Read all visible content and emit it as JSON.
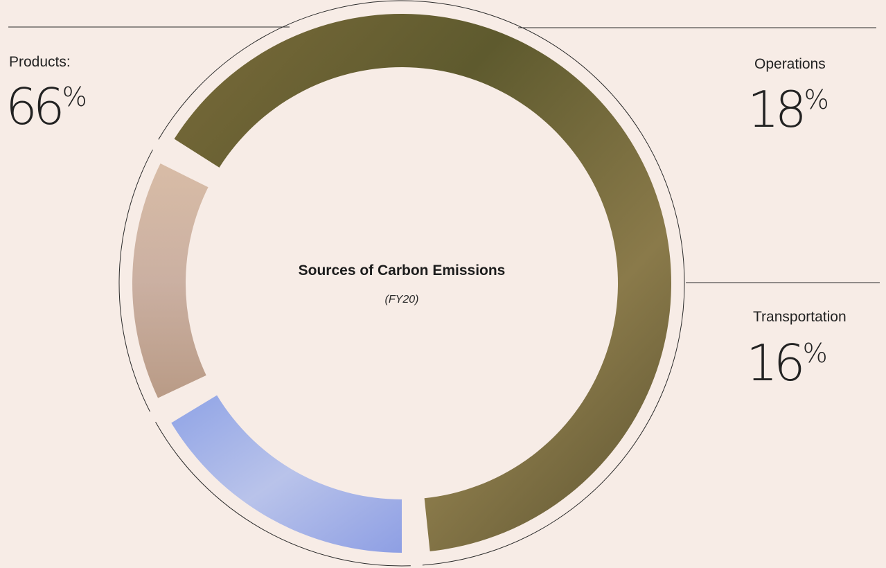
{
  "chart_data": {
    "type": "pie",
    "title": "Sources of Carbon Emissions",
    "subtitle": "(FY20)",
    "slices": [
      {
        "label": "Products:",
        "value": 66,
        "display": "66",
        "unit": "%",
        "color": "#6e6438"
      },
      {
        "label": "Operations",
        "value": 18,
        "display": "18",
        "unit": "%",
        "color": "#a3b3e8"
      },
      {
        "label": "Transportation",
        "value": 16,
        "display": "16",
        "unit": "%",
        "color": "#cfae9c"
      }
    ]
  }
}
